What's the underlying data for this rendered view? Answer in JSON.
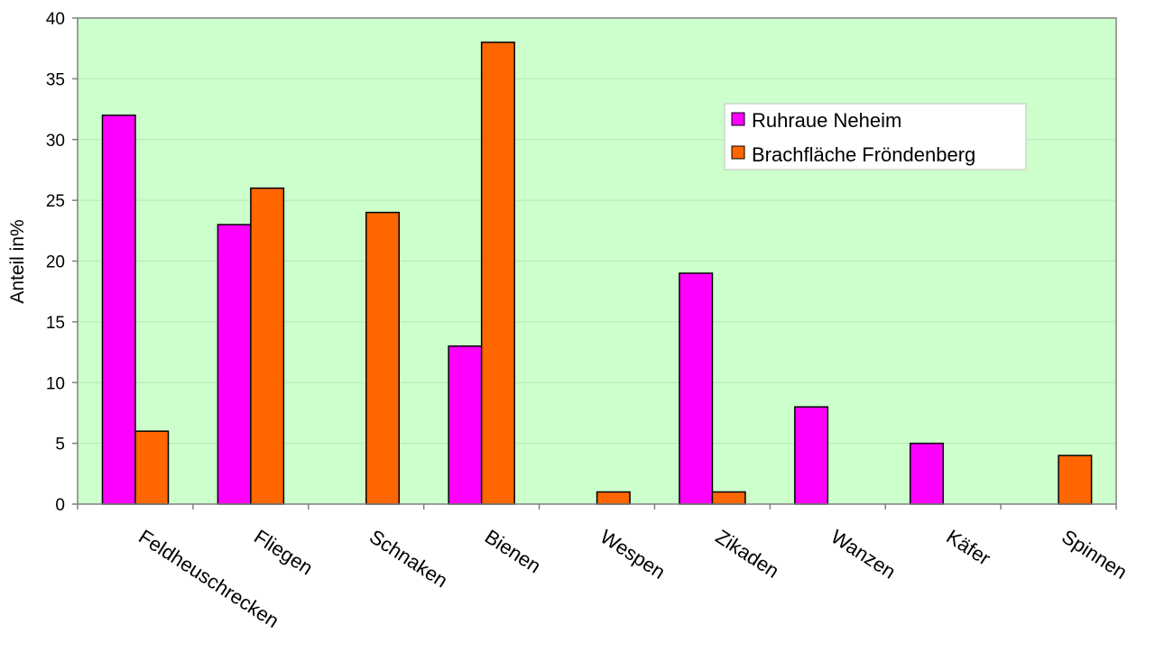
{
  "chart_data": {
    "type": "bar",
    "title": "",
    "xlabel": "",
    "ylabel": "Anteil in%",
    "ylim": [
      0,
      40
    ],
    "yticks": [
      0,
      5,
      10,
      15,
      20,
      25,
      30,
      35,
      40
    ],
    "grid": true,
    "legend_position": "top-right",
    "plot_background": "#ccffcc",
    "categories": [
      "Feldheuschrecken",
      "Fliegen",
      "Schnaken",
      "Bienen",
      "Wespen",
      "Zikaden",
      "Wanzen",
      "Käfer",
      "Spinnen"
    ],
    "series": [
      {
        "name": "Ruhraue Neheim",
        "color": "#ff00ff",
        "values": [
          32,
          23,
          0,
          13,
          0,
          19,
          8,
          5,
          0
        ]
      },
      {
        "name": "Brachfläche Fröndenberg",
        "color": "#ff6600",
        "values": [
          6,
          26,
          24,
          38,
          1,
          1,
          0,
          0,
          4
        ]
      }
    ]
  }
}
